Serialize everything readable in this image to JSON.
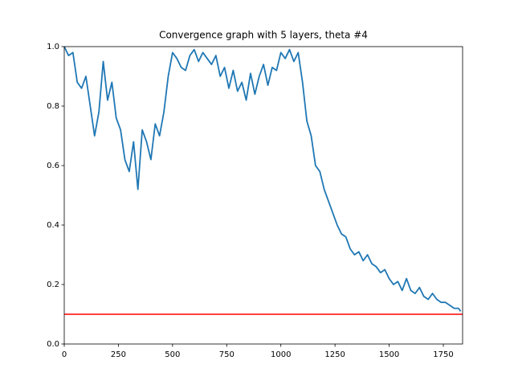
{
  "chart_data": {
    "type": "line",
    "title": "Convergence graph with 5 layers, theta #4",
    "x": [
      0,
      20,
      40,
      60,
      80,
      100,
      120,
      140,
      160,
      180,
      200,
      220,
      240,
      260,
      280,
      300,
      320,
      340,
      360,
      380,
      400,
      420,
      440,
      460,
      480,
      500,
      520,
      540,
      560,
      580,
      600,
      620,
      640,
      660,
      680,
      700,
      720,
      740,
      760,
      780,
      800,
      820,
      840,
      860,
      880,
      900,
      920,
      940,
      960,
      980,
      1000,
      1020,
      1040,
      1060,
      1080,
      1100,
      1120,
      1140,
      1160,
      1180,
      1200,
      1220,
      1240,
      1260,
      1280,
      1300,
      1320,
      1340,
      1360,
      1380,
      1400,
      1420,
      1440,
      1460,
      1480,
      1500,
      1520,
      1540,
      1560,
      1580,
      1600,
      1620,
      1640,
      1660,
      1680,
      1700,
      1720,
      1740,
      1760,
      1780,
      1800,
      1820,
      1830
    ],
    "series": [
      {
        "color": "#1f77b4",
        "values": [
          1.0,
          0.97,
          0.98,
          0.88,
          0.86,
          0.9,
          0.8,
          0.7,
          0.78,
          0.95,
          0.82,
          0.88,
          0.76,
          0.72,
          0.62,
          0.58,
          0.68,
          0.52,
          0.72,
          0.68,
          0.62,
          0.74,
          0.7,
          0.78,
          0.9,
          0.98,
          0.96,
          0.93,
          0.92,
          0.97,
          0.99,
          0.95,
          0.98,
          0.96,
          0.94,
          0.97,
          0.9,
          0.93,
          0.86,
          0.92,
          0.85,
          0.88,
          0.82,
          0.91,
          0.84,
          0.9,
          0.94,
          0.87,
          0.93,
          0.92,
          0.98,
          0.96,
          0.99,
          0.95,
          0.98,
          0.88,
          0.75,
          0.7,
          0.6,
          0.58,
          0.52,
          0.48,
          0.44,
          0.4,
          0.37,
          0.36,
          0.32,
          0.3,
          0.31,
          0.28,
          0.3,
          0.27,
          0.26,
          0.24,
          0.25,
          0.22,
          0.2,
          0.21,
          0.18,
          0.22,
          0.18,
          0.17,
          0.19,
          0.16,
          0.15,
          0.17,
          0.15,
          0.14,
          0.14,
          0.13,
          0.12,
          0.12,
          0.11
        ]
      }
    ],
    "threshold": {
      "value": 0.1,
      "color": "#ff0000"
    },
    "xlim": [
      0,
      1839
    ],
    "ylim": [
      0,
      1
    ],
    "xticks": [
      0,
      250,
      500,
      750,
      1000,
      1250,
      1500,
      1750
    ],
    "yticks": [
      {
        "value": 0,
        "label": "0.0"
      },
      0.2,
      0.4,
      0.6,
      0.8,
      {
        "value": 1,
        "label": "1.0"
      }
    ]
  }
}
